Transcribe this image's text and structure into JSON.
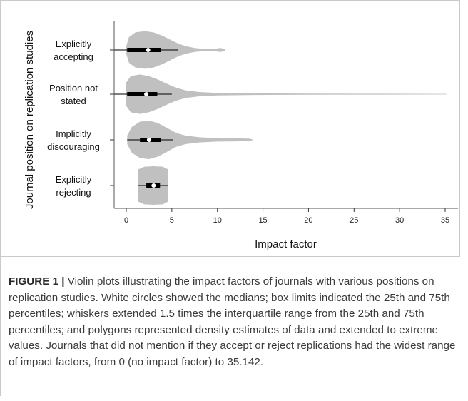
{
  "figure": {
    "label": "FIGURE 1 |",
    "caption": " Violin plots illustrating the impact factors of journals with various positions on replication studies. White circles showed the medians; box limits indicated the 25th and 75th percentiles; whiskers extended 1.5 times the interquartile range from the 25th and 75th percentiles; and polygons represented density estimates of data and extended to extreme values. Journals that did not mention if they accept or reject replications had the widest range of impact factors, from 0 (no impact factor) to 35.142."
  },
  "chart_data": {
    "type": "violin",
    "orientation": "horizontal",
    "xlabel": "Impact factor",
    "ylabel": "Journal position on replication studies",
    "xlim": [
      0,
      35
    ],
    "xticks": [
      0,
      5,
      10,
      15,
      20,
      25,
      30,
      35
    ],
    "grid": false,
    "colors": {
      "violin": "#c0c0c0",
      "box": "#000000",
      "median": "#ffffff"
    },
    "categories": [
      {
        "label_lines": [
          "Explicitly",
          "accepting"
        ],
        "min": 0,
        "q1": 0.1,
        "median": 2.4,
        "q3": 3.8,
        "whisker_low": -1.8,
        "whisker_high": 5.7,
        "max": 10.9,
        "density": [
          [
            0,
            0.18
          ],
          [
            0.3,
            0.6
          ],
          [
            1,
            0.82
          ],
          [
            2,
            0.88
          ],
          [
            3,
            0.82
          ],
          [
            4,
            0.66
          ],
          [
            5,
            0.44
          ],
          [
            5.7,
            0.3
          ],
          [
            6.5,
            0.18
          ],
          [
            7.5,
            0.09
          ],
          [
            8.5,
            0.05
          ],
          [
            9.5,
            0.04
          ],
          [
            10.3,
            0.09
          ],
          [
            10.8,
            0.06
          ],
          [
            10.9,
            0
          ]
        ]
      },
      {
        "label_lines": [
          "Position not",
          "stated"
        ],
        "min": 0,
        "q1": 0.1,
        "median": 2.2,
        "q3": 3.4,
        "whisker_low": -1.7,
        "whisker_high": 5.0,
        "max": 35.142,
        "density": [
          [
            0,
            0.55
          ],
          [
            0.5,
            0.85
          ],
          [
            1.5,
            0.92
          ],
          [
            2.5,
            0.84
          ],
          [
            3.5,
            0.68
          ],
          [
            4.5,
            0.48
          ],
          [
            5.5,
            0.3
          ],
          [
            6.5,
            0.18
          ],
          [
            8,
            0.1
          ],
          [
            10,
            0.06
          ],
          [
            14,
            0.035
          ],
          [
            20,
            0.025
          ],
          [
            28,
            0.02
          ],
          [
            35.142,
            0.015
          ]
        ]
      },
      {
        "label_lines": [
          "Implicitly",
          "discouraging"
        ],
        "min": 0.1,
        "q1": 1.5,
        "median": 2.5,
        "q3": 3.8,
        "whisker_low": 0.1,
        "whisker_high": 5.1,
        "max": 14.0,
        "density": [
          [
            0.1,
            0.2
          ],
          [
            0.6,
            0.6
          ],
          [
            1.5,
            0.85
          ],
          [
            2.5,
            0.9
          ],
          [
            3.5,
            0.78
          ],
          [
            4.5,
            0.55
          ],
          [
            5.5,
            0.32
          ],
          [
            6.5,
            0.2
          ],
          [
            8,
            0.12
          ],
          [
            10,
            0.08
          ],
          [
            12,
            0.07
          ],
          [
            13.5,
            0.06
          ],
          [
            14,
            0
          ]
        ]
      },
      {
        "label_lines": [
          "Explicitly",
          "rejecting"
        ],
        "min": 1.3,
        "q1": 2.2,
        "median": 3.0,
        "q3": 3.7,
        "whisker_low": 1.3,
        "whisker_high": 4.6,
        "max": 4.6,
        "density": [
          [
            1.3,
            0.75
          ],
          [
            2,
            0.88
          ],
          [
            3,
            0.9
          ],
          [
            4,
            0.88
          ],
          [
            4.6,
            0.75
          ]
        ]
      }
    ]
  }
}
